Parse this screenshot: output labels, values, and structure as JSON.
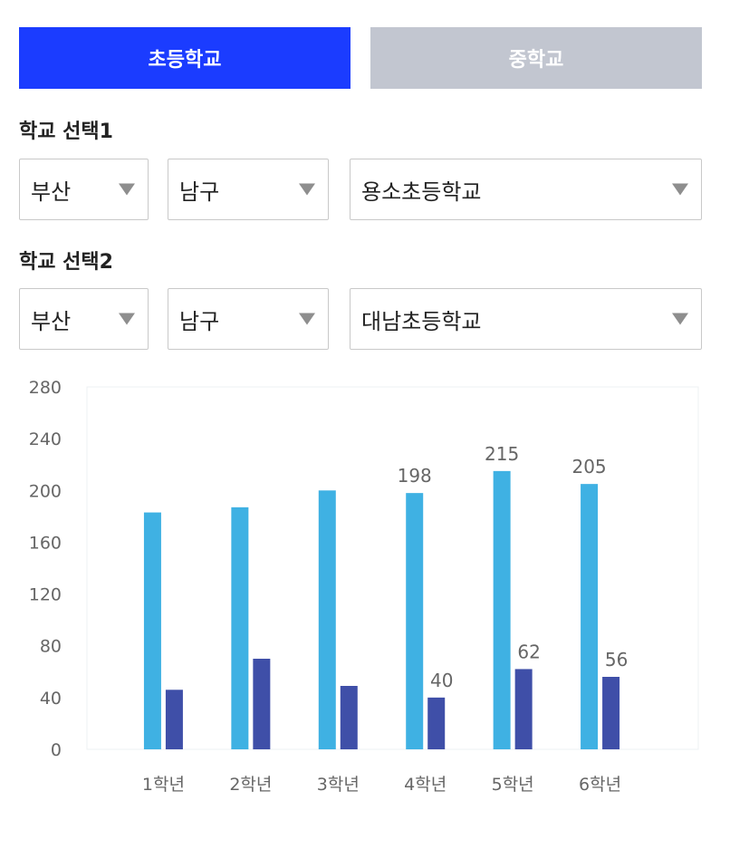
{
  "tabs": [
    {
      "label": "초등학교",
      "active": true,
      "color": "#1b3cff"
    },
    {
      "label": "중학교",
      "active": false,
      "color": "#c2c6d0"
    }
  ],
  "selection1": {
    "label": "학교 선택1",
    "city": "부산",
    "district": "남구",
    "school": "용소초등학교"
  },
  "selection2": {
    "label": "학교 선택2",
    "city": "부산",
    "district": "남구",
    "school": "대남초등학교"
  },
  "chart_data": {
    "type": "bar",
    "categories": [
      "1학년",
      "2학년",
      "3학년",
      "4학년",
      "5학년",
      "6학년"
    ],
    "series": [
      {
        "values": [
          183,
          187,
          200,
          198,
          215,
          205
        ],
        "color": "#3fb1e3"
      },
      {
        "values": [
          46,
          70,
          49,
          40,
          62,
          56
        ],
        "color": "#3f4fa8"
      }
    ],
    "data_labels": [
      {
        "series": 0,
        "index": 3,
        "text": "198"
      },
      {
        "series": 0,
        "index": 4,
        "text": "215"
      },
      {
        "series": 0,
        "index": 5,
        "text": "205"
      },
      {
        "series": 1,
        "index": 3,
        "text": "40"
      },
      {
        "series": 1,
        "index": 4,
        "text": "62"
      },
      {
        "series": 1,
        "index": 5,
        "text": "56"
      }
    ],
    "y_ticks": [
      "0",
      "40",
      "80",
      "120",
      "160",
      "200",
      "240",
      "280"
    ],
    "ylim": [
      0,
      280
    ],
    "grid": false,
    "legend": "none"
  }
}
